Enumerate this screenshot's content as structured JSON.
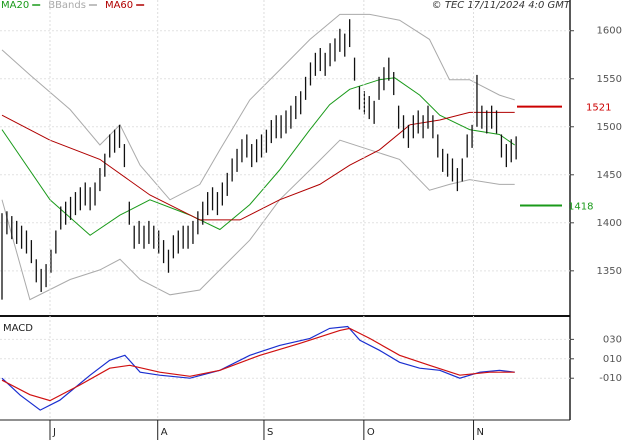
{
  "chart_data": [
    {
      "type": "ohlc",
      "source": "© TEC 17/11/2024 4:0 GMT",
      "bar_color": "#111111",
      "high": [
        1410,
        1412,
        1407,
        1402,
        1397,
        1392,
        1382,
        1362,
        1352,
        1357,
        1372,
        1392,
        1417,
        1422,
        1427,
        1432,
        1437,
        1442,
        1437,
        1442,
        1457,
        1472,
        1492,
        1497,
        1502,
        1482,
        1422,
        1397,
        1402,
        1397,
        1402,
        1397,
        1392,
        1382,
        1372,
        1387,
        1392,
        1397,
        1397,
        1402,
        1412,
        1422,
        1432,
        1437,
        1432,
        1442,
        1452,
        1467,
        1477,
        1487,
        1492,
        1482,
        1487,
        1492,
        1497,
        1507,
        1512,
        1512,
        1517,
        1522,
        1532,
        1537,
        1552,
        1567,
        1577,
        1582,
        1577,
        1587,
        1592,
        1602,
        1597,
        1612,
        1572,
        1542,
        1537,
        1532,
        1527,
        1552,
        1562,
        1572,
        1557,
        1522,
        1512,
        1502,
        1512,
        1517,
        1512,
        1522,
        1512,
        1492,
        1477,
        1472,
        1467,
        1457,
        1467,
        1492,
        1502,
        1554,
        1522,
        1517,
        1522,
        1517,
        1492,
        1482,
        1487,
        1490
      ],
      "low": [
        1320,
        1388,
        1383,
        1378,
        1373,
        1368,
        1358,
        1338,
        1328,
        1333,
        1348,
        1368,
        1393,
        1398,
        1403,
        1408,
        1413,
        1418,
        1413,
        1418,
        1433,
        1448,
        1468,
        1473,
        1478,
        1458,
        1398,
        1373,
        1378,
        1373,
        1378,
        1373,
        1368,
        1358,
        1348,
        1363,
        1368,
        1373,
        1373,
        1378,
        1388,
        1398,
        1408,
        1413,
        1408,
        1418,
        1428,
        1443,
        1453,
        1463,
        1468,
        1458,
        1463,
        1468,
        1473,
        1483,
        1488,
        1488,
        1493,
        1498,
        1508,
        1513,
        1528,
        1543,
        1553,
        1558,
        1553,
        1563,
        1568,
        1578,
        1573,
        1583,
        1548,
        1518,
        1513,
        1508,
        1503,
        1528,
        1538,
        1548,
        1533,
        1498,
        1488,
        1478,
        1488,
        1493,
        1488,
        1498,
        1488,
        1468,
        1453,
        1448,
        1443,
        1433,
        1443,
        1468,
        1478,
        1500,
        1498,
        1493,
        1498,
        1493,
        1468,
        1458,
        1463,
        1466
      ],
      "series": [
        {
          "name": "MA20",
          "color": "#1a9a1a",
          "x": [
            0,
            9.8,
            18,
            24.1,
            30.2,
            38.4,
            44.5,
            50.6,
            56.7,
            62.9,
            66.9,
            71,
            77.1,
            80.2,
            85.3,
            89.4,
            95.5,
            101.6,
            104.7
          ],
          "values": [
            1497,
            1424,
            1387,
            1408,
            1424,
            1408,
            1393,
            1419,
            1455,
            1497,
            1523,
            1539,
            1549,
            1551,
            1533,
            1512,
            1497,
            1492,
            1481
          ]
        },
        {
          "name": "MA60",
          "color": "#b00000",
          "x": [
            0,
            9.8,
            20,
            30.2,
            40.4,
            48.6,
            56.7,
            64.9,
            71,
            77.1,
            83.3,
            89.4,
            95.5,
            104.7
          ],
          "values": [
            1512,
            1486,
            1466,
            1429,
            1403,
            1403,
            1424,
            1440,
            1460,
            1476,
            1502,
            1507,
            1515,
            1515
          ]
        }
      ],
      "bands": {
        "name": "BBands",
        "color": "#aaaaaa",
        "x": [
          0,
          5.7,
          13.9,
          20,
          24.1,
          28.2,
          34.3,
          40.4,
          44.5,
          50.6,
          56.7,
          62.9,
          69,
          75.1,
          81.2,
          87.3,
          91.4,
          95.5,
          101.6,
          104.7
        ],
        "upper": [
          1580,
          1554,
          1518,
          1481,
          1502,
          1460,
          1424,
          1440,
          1476,
          1528,
          1559,
          1591,
          1617,
          1617,
          1611,
          1591,
          1549,
          1549,
          1533,
          1528
        ],
        "lower": [
          1424,
          1320,
          1341,
          1351,
          1362,
          1341,
          1325,
          1330,
          1351,
          1382,
          1424,
          1455,
          1486,
          1476,
          1466,
          1434,
          1440,
          1445,
          1440,
          1440
        ]
      },
      "annotations": [
        {
          "value": 1521,
          "color": "#cc0000"
        },
        {
          "value": 1418,
          "color": "#1a9a1a"
        }
      ],
      "ylim": [
        1304,
        1632
      ],
      "yticks": [
        1350,
        1400,
        1450,
        1500,
        1550,
        1600
      ],
      "xlim": [
        0,
        116
      ],
      "xticks": [
        {
          "value": 9.8,
          "label": "J"
        },
        {
          "value": 31.8,
          "label": "A"
        },
        {
          "value": 53.5,
          "label": "S"
        },
        {
          "value": 73.9,
          "label": "O"
        },
        {
          "value": 96.3,
          "label": "N"
        }
      ],
      "grid": true
    },
    {
      "type": "line",
      "title": "MACD",
      "series": [
        {
          "color": "#1a2fd0",
          "x": [
            0,
            3.7,
            7.8,
            11.8,
            18,
            22,
            25.1,
            28.2,
            32.2,
            38.4,
            44.5,
            50.6,
            56.7,
            62.9,
            66.9,
            70.6,
            73.1,
            77.1,
            81.2,
            85.3,
            89.4,
            93.5,
            97.6,
            101.6,
            104.7
          ],
          "values": [
            -10,
            -27.4,
            -42.8,
            -32.6,
            -6.9,
            8.5,
            13.6,
            -3.8,
            -6.9,
            -10,
            -1.8,
            13.6,
            23.8,
            31,
            41.3,
            43.3,
            29,
            18.7,
            6.4,
            0.3,
            -1.8,
            -10,
            -3.8,
            -1.8,
            -3.8
          ]
        },
        {
          "color": "#d01010",
          "x": [
            0,
            5.7,
            9.8,
            15.9,
            22,
            26.1,
            32.2,
            38.4,
            44.5,
            52.7,
            60.8,
            69,
            71,
            75.1,
            81.2,
            87.3,
            93.5,
            99.6,
            104.7
          ],
          "values": [
            -12,
            -27,
            -33,
            -17,
            0.3,
            3.3,
            -3.8,
            -8,
            -1.8,
            13.6,
            25.9,
            39.2,
            41.3,
            31,
            13.6,
            3.3,
            -6.9,
            -3.8,
            -3.8
          ]
        }
      ],
      "ylim": [
        -53,
        52
      ],
      "yticks": [
        {
          "value": 30,
          "label": "030"
        },
        {
          "value": 10,
          "label": "010"
        },
        {
          "value": -10,
          "label": "-010"
        }
      ],
      "xlim": [
        0,
        116
      ],
      "grid": true
    }
  ]
}
